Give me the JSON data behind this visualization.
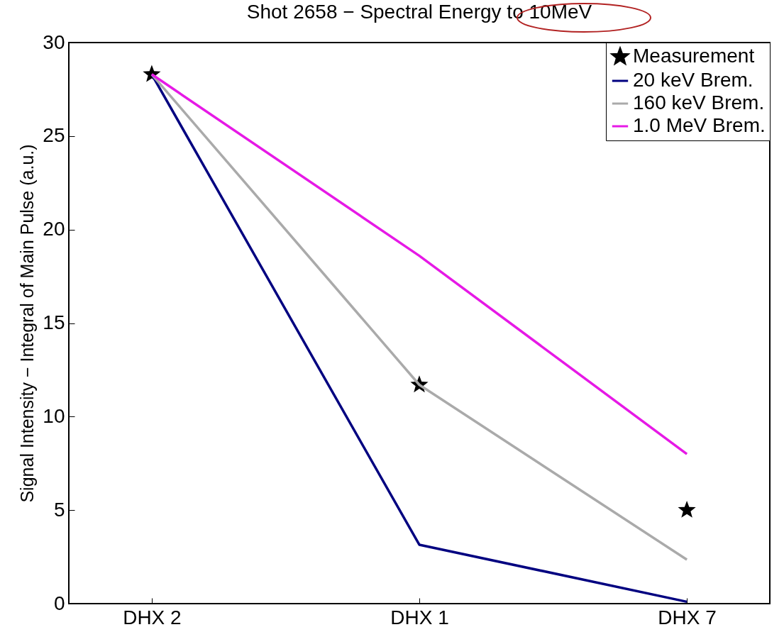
{
  "chart_data": {
    "type": "line",
    "title": "Shot 2658 − Spectral Energy to 10MeV",
    "ylabel": "Signal Intensity − Integral of Main Pulse (a.u.)",
    "categories": [
      "DHX 2",
      "DHX 1",
      "DHX 7"
    ],
    "ylim": [
      0,
      30
    ],
    "yticks": [
      0,
      5,
      10,
      15,
      20,
      25,
      30
    ],
    "grid": false,
    "legend": "top right",
    "series": [
      {
        "name": "Measurement",
        "type": "scatter",
        "marker": "star",
        "color": "#000000",
        "values": [
          28.3,
          11.7,
          5.0
        ]
      },
      {
        "name": "20 keV Brem.",
        "color": "#000080",
        "values": [
          28.3,
          3.15,
          0.1
        ]
      },
      {
        "name": "160 keV Brem.",
        "color": "#aaaaaa",
        "values": [
          28.3,
          11.7,
          2.35
        ]
      },
      {
        "name": "1.0 MeV Brem.",
        "color": "#e619e6",
        "values": [
          28.3,
          18.6,
          8.0
        ]
      }
    ]
  }
}
